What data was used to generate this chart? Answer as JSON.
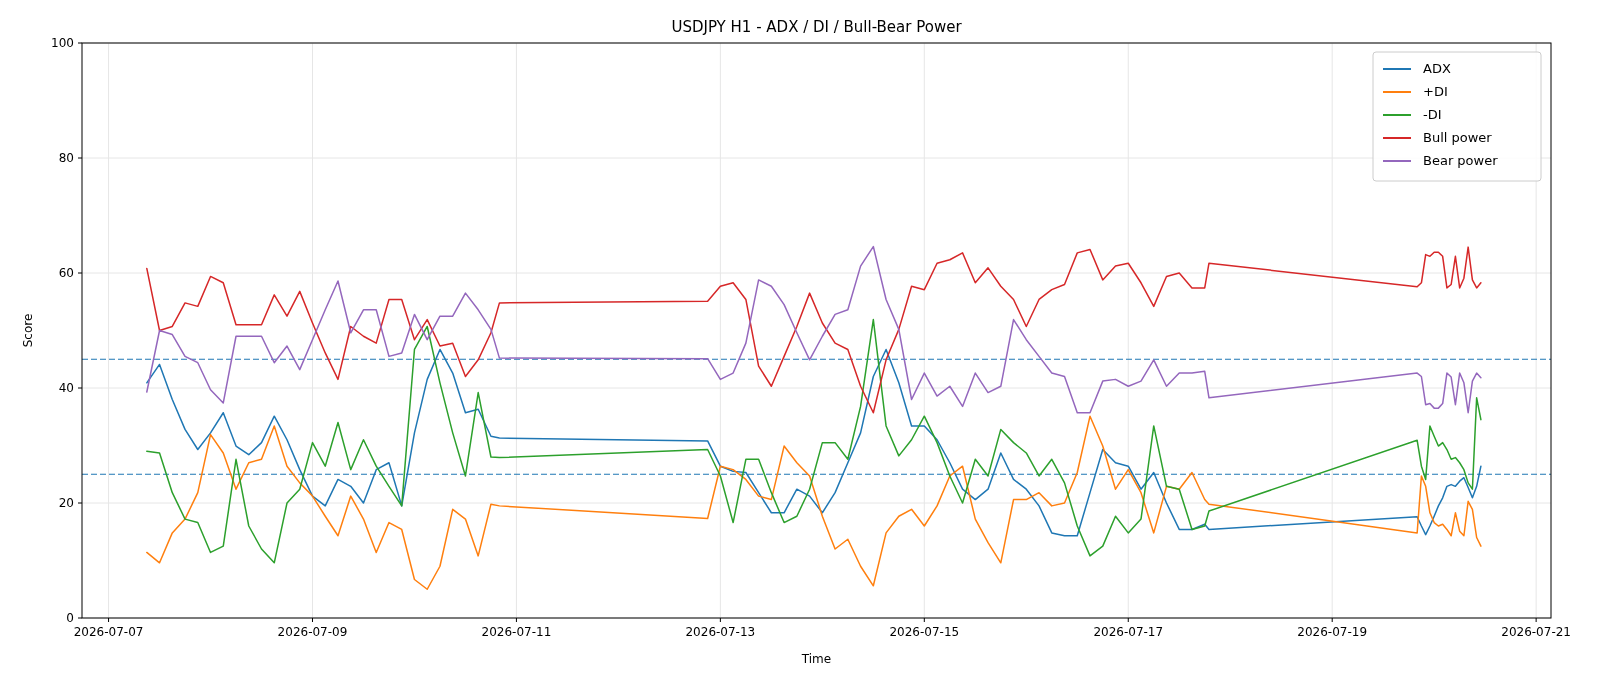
{
  "chart_data": {
    "type": "line",
    "title": "USDJPY H1 - ADX / DI / Bull-Bear Power",
    "xlabel": "Time",
    "ylabel": "Score",
    "x": [
      "2026-07-07T09:00",
      "2026-07-07T12:00",
      "2026-07-07T15:00",
      "2026-07-07T18:00",
      "2026-07-07T21:00",
      "2026-07-08T00:00",
      "2026-07-08T03:00",
      "2026-07-08T06:00",
      "2026-07-08T09:00",
      "2026-07-08T12:00",
      "2026-07-08T15:00",
      "2026-07-08T18:00",
      "2026-07-08T21:00",
      "2026-07-09T00:00",
      "2026-07-09T03:00",
      "2026-07-09T06:00",
      "2026-07-09T09:00",
      "2026-07-09T12:00",
      "2026-07-09T15:00",
      "2026-07-09T18:00",
      "2026-07-09T21:00",
      "2026-07-10T00:00",
      "2026-07-10T03:00",
      "2026-07-10T06:00",
      "2026-07-10T09:00",
      "2026-07-10T12:00",
      "2026-07-10T15:00",
      "2026-07-10T18:00",
      "2026-07-10T20:00",
      "2026-07-12T21:00",
      "2026-07-13T00:00",
      "2026-07-13T03:00",
      "2026-07-13T06:00",
      "2026-07-13T09:00",
      "2026-07-13T12:00",
      "2026-07-13T15:00",
      "2026-07-13T18:00",
      "2026-07-13T21:00",
      "2026-07-14T00:00",
      "2026-07-14T03:00",
      "2026-07-14T06:00",
      "2026-07-14T09:00",
      "2026-07-14T12:00",
      "2026-07-14T15:00",
      "2026-07-14T18:00",
      "2026-07-14T21:00",
      "2026-07-15T00:00",
      "2026-07-15T03:00",
      "2026-07-15T06:00",
      "2026-07-15T09:00",
      "2026-07-15T12:00",
      "2026-07-15T15:00",
      "2026-07-15T18:00",
      "2026-07-15T21:00",
      "2026-07-16T00:00",
      "2026-07-16T03:00",
      "2026-07-16T06:00",
      "2026-07-16T09:00",
      "2026-07-16T12:00",
      "2026-07-16T15:00",
      "2026-07-16T18:00",
      "2026-07-16T21:00",
      "2026-07-17T00:00",
      "2026-07-17T03:00",
      "2026-07-17T06:00",
      "2026-07-17T09:00",
      "2026-07-17T12:00",
      "2026-07-17T15:00",
      "2026-07-17T18:00",
      "2026-07-17T19:00",
      "2026-07-19T20:00",
      "2026-07-19T21:00",
      "2026-07-19T22:00",
      "2026-07-19T23:00",
      "2026-07-20T00:00",
      "2026-07-20T01:00",
      "2026-07-20T02:00",
      "2026-07-20T03:00",
      "2026-07-20T04:00",
      "2026-07-20T05:00",
      "2026-07-20T06:00",
      "2026-07-20T07:00",
      "2026-07-20T08:00",
      "2026-07-20T09:00",
      "2026-07-20T10:00",
      "2026-07-20T11:00"
    ],
    "series": [
      {
        "name": "ADX",
        "color": "#1f77b4",
        "values": [
          40.9,
          44.1,
          38,
          32.8,
          29.3,
          32.2,
          35.7,
          29.9,
          28.4,
          30.5,
          35.1,
          31,
          25.8,
          21.2,
          19.5,
          24.1,
          22.9,
          20,
          25.8,
          27,
          19.5,
          32.2,
          41.5,
          46.7,
          42.6,
          35.7,
          36.3,
          31.6,
          31.3,
          30.8,
          26.4,
          25.5,
          25.3,
          21.8,
          18.3,
          18.3,
          22.4,
          21.2,
          18.3,
          21.8,
          27,
          32.2,
          42,
          46.7,
          40.9,
          33.4,
          33.4,
          31,
          27,
          22.4,
          20.6,
          22.4,
          28.7,
          24.1,
          22.4,
          19.5,
          14.8,
          14.3,
          14.3,
          21.8,
          29.3,
          27,
          26.4,
          22.4,
          25.3,
          20,
          15.4,
          15.4,
          16.3,
          15.4,
          17.6,
          16,
          14.5,
          16,
          17.7,
          19.5,
          20.9,
          22.9,
          23.2,
          22.9,
          23.8,
          24.4,
          22.7,
          20.9,
          22.9,
          26.4
        ]
      },
      {
        "name": "+DI",
        "color": "#ff7f0e",
        "values": [
          11.4,
          9.6,
          14.8,
          17.2,
          21.8,
          31.9,
          28.7,
          22.4,
          27,
          27.6,
          33.4,
          26.4,
          23.5,
          21.2,
          17.7,
          14.3,
          21.2,
          17.2,
          11.4,
          16.6,
          15.4,
          6.7,
          5,
          9,
          18.9,
          17.2,
          10.8,
          19.8,
          19.5,
          17.3,
          26.4,
          25.8,
          24.1,
          21.2,
          20.6,
          29.9,
          27,
          24.7,
          17.7,
          12,
          13.7,
          9,
          5.6,
          14.8,
          17.7,
          18.9,
          16,
          19.5,
          24.7,
          26.4,
          17.2,
          13.1,
          9.6,
          20.6,
          20.6,
          21.8,
          19.5,
          20,
          25.3,
          35.1,
          29.9,
          22.4,
          25.8,
          21.8,
          14.8,
          22.9,
          22.4,
          25.3,
          20.6,
          19.8,
          14.8,
          24.7,
          22.9,
          18.3,
          16.6,
          16,
          16.3,
          15.4,
          14.3,
          18.3,
          15.1,
          14.3,
          20.3,
          18.9,
          14,
          12.5
        ]
      },
      {
        "name": "-DI",
        "color": "#2ca02c",
        "values": [
          29,
          28.7,
          21.8,
          17.2,
          16.6,
          11.4,
          12.5,
          27.6,
          16,
          12,
          9.6,
          20,
          22.4,
          30.5,
          26.4,
          34,
          25.8,
          31,
          26.4,
          22.9,
          19.5,
          46.7,
          50.7,
          40.9,
          32.2,
          24.7,
          39.2,
          28,
          27.9,
          29.3,
          24.7,
          16.6,
          27.6,
          27.6,
          21.8,
          16.6,
          17.7,
          22.4,
          30.5,
          30.5,
          27.6,
          36.8,
          51.9,
          33.4,
          28.2,
          31,
          35.1,
          30.5,
          24.7,
          20,
          27.6,
          24.7,
          32.8,
          30.5,
          28.7,
          24.7,
          27.6,
          23.5,
          16,
          10.8,
          12.5,
          17.7,
          14.8,
          17.2,
          33.4,
          22.9,
          22.4,
          15.4,
          16,
          18.6,
          30.9,
          26.4,
          24.1,
          33.4,
          31.6,
          29.9,
          30.5,
          29.3,
          27.6,
          27.9,
          27,
          25.8,
          23.5,
          22.4,
          38.3,
          34.5
        ]
      },
      {
        "name": "Bull power",
        "color": "#d62728",
        "values": [
          60.8,
          50,
          50.7,
          54.8,
          54.2,
          59.4,
          58.3,
          51,
          51,
          51,
          56.2,
          52.5,
          56.8,
          51.3,
          46.1,
          41.5,
          50.7,
          49,
          47.8,
          55.4,
          55.4,
          48.4,
          51.9,
          47.3,
          47.8,
          42,
          44.9,
          49.6,
          54.8,
          55.1,
          57.7,
          58.3,
          55.4,
          43.8,
          40.3,
          45.5,
          50.7,
          56.5,
          51.3,
          47.8,
          46.7,
          40.3,
          35.7,
          44.9,
          50.2,
          57.7,
          57.1,
          61.7,
          62.3,
          63.5,
          58.3,
          60.9,
          57.7,
          55.4,
          50.7,
          55.4,
          57.1,
          58,
          63.5,
          64.1,
          58.8,
          61.2,
          61.7,
          58.3,
          54.2,
          59.4,
          60,
          57.4,
          57.4,
          61.7,
          57.6,
          58.3,
          63.2,
          62.9,
          63.6,
          63.6,
          62.9,
          57.4,
          58,
          62.9,
          57.4,
          59.1,
          64.5,
          58.8,
          57.4,
          58.3
        ]
      },
      {
        "name": "Bear power",
        "color": "#9467bd",
        "values": [
          39.3,
          50,
          49.3,
          45.5,
          44.4,
          39.7,
          37.4,
          49,
          49,
          49,
          44.4,
          47.3,
          43.2,
          48.4,
          53.6,
          58.6,
          49.6,
          53.6,
          53.6,
          45.5,
          46.1,
          52.8,
          48.4,
          52.5,
          52.5,
          56.5,
          53.6,
          50.2,
          45.2,
          45.1,
          41.5,
          42.6,
          47.8,
          58.8,
          57.7,
          54.5,
          49.6,
          44.9,
          49,
          52.8,
          53.6,
          61.2,
          64.6,
          55.4,
          50.2,
          38,
          42.6,
          38.6,
          40.3,
          36.8,
          42.6,
          39.2,
          40.3,
          51.9,
          48.4,
          45.5,
          42.6,
          42,
          35.7,
          35.7,
          41.2,
          41.5,
          40.3,
          41.2,
          44.9,
          40.3,
          42.6,
          42.6,
          42.9,
          38.3,
          42.6,
          42,
          37.1,
          37.3,
          36.5,
          36.5,
          37.3,
          42.6,
          41.9,
          37.1,
          42.6,
          40.9,
          35.7,
          41.2,
          42.6,
          41.8
        ]
      }
    ],
    "xlim": [
      "2026-07-06T17:45",
      "2026-07-21T03:30"
    ],
    "xticks": [
      "2026-07-07",
      "2026-07-09",
      "2026-07-11",
      "2026-07-13",
      "2026-07-15",
      "2026-07-17",
      "2026-07-19",
      "2026-07-21"
    ],
    "ylim": [
      0,
      100
    ],
    "yticks": [
      0,
      20,
      40,
      60,
      80,
      100
    ],
    "ref_lines": [
      {
        "axis": "y",
        "value": 45,
        "color": "#1f77b4",
        "line_style": "dashed"
      },
      {
        "axis": "y",
        "value": 25,
        "color": "#1f77b4",
        "line_style": "dashed"
      }
    ],
    "grid": true,
    "legend": "top right",
    "line_style": "solid",
    "marker": "none"
  }
}
